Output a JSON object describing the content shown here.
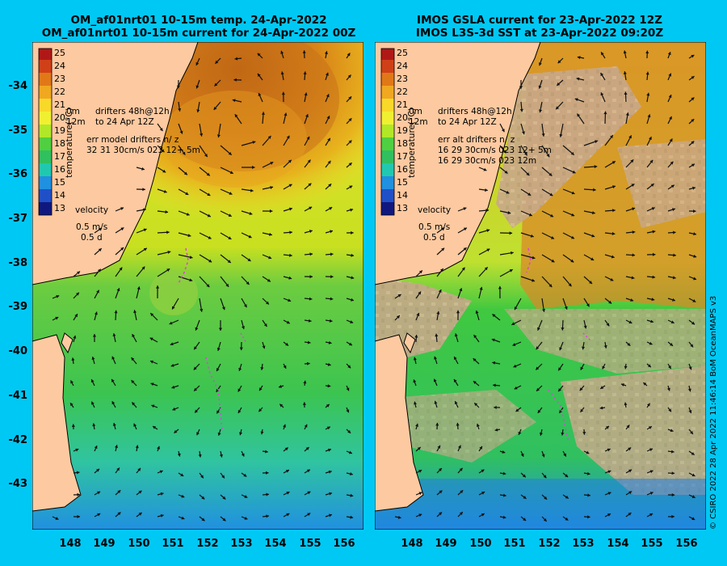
{
  "left_panel": {
    "title_line1": "OM_af01nrt01 10-15m temp. 24-Apr-2022",
    "title_line2": "OM_af01nrt01 10-15m current for 24-Apr-2022 00Z",
    "colorbar_label": "temperature(°C)",
    "drifters_line1": "drifters 48h@12h",
    "drifters_line2": "to 24 Apr 12Z",
    "drifters_prefix1": "0m",
    "drifters_prefix2": "12m",
    "err_line1": "err model drifters n/ z",
    "err_line2": "32 31 30cm/s 023 12+ 5m",
    "velocity_label": "velocity",
    "velocity_scale": "0.5 m/s",
    "velocity_days": "0.5 d"
  },
  "right_panel": {
    "title_line1": "IMOS GSLA current for 23-Apr-2022 12Z",
    "title_line2": "IMOS L3S-3d SST at 23-Apr-2022 09:20Z",
    "colorbar_label": "temperature(°C)",
    "drifters_line1": "drifters 48h@12h",
    "drifters_line2": "to 24 Apr 12Z",
    "drifters_prefix1": "0m",
    "drifters_prefix2": "12m",
    "err_line1": "err alt drifters n/ z",
    "err_line2": "16 29 30cm/s 023 12+ 5m",
    "err_line3": "16 29 30cm/s 023 12m",
    "velocity_label": "velocity",
    "velocity_scale": "0.5 m/s",
    "velocity_days": "0.5 d"
  },
  "colorbar_ticks": [
    "25",
    "24",
    "23",
    "22",
    "21",
    "20",
    "19",
    "18",
    "17",
    "16",
    "15",
    "14",
    "13"
  ],
  "lat_ticks": [
    "-34",
    "-35",
    "-36",
    "-37",
    "-38",
    "-39",
    "-40",
    "-41",
    "-42",
    "-43"
  ],
  "lon_ticks": [
    "148",
    "149",
    "150",
    "151",
    "152",
    "153",
    "154",
    "155",
    "156"
  ],
  "credit": "© CSIRO 2022  28 Apr 2022 11:46:14 BoM OceanMAPS v3",
  "colors": {
    "background": "#00c8f4",
    "land": "#fdc9a0",
    "cloud": "#c8a88a",
    "warm": "#c86a10",
    "mid": "#f0d020",
    "cool": "#30c040",
    "cold": "#2080e0"
  }
}
